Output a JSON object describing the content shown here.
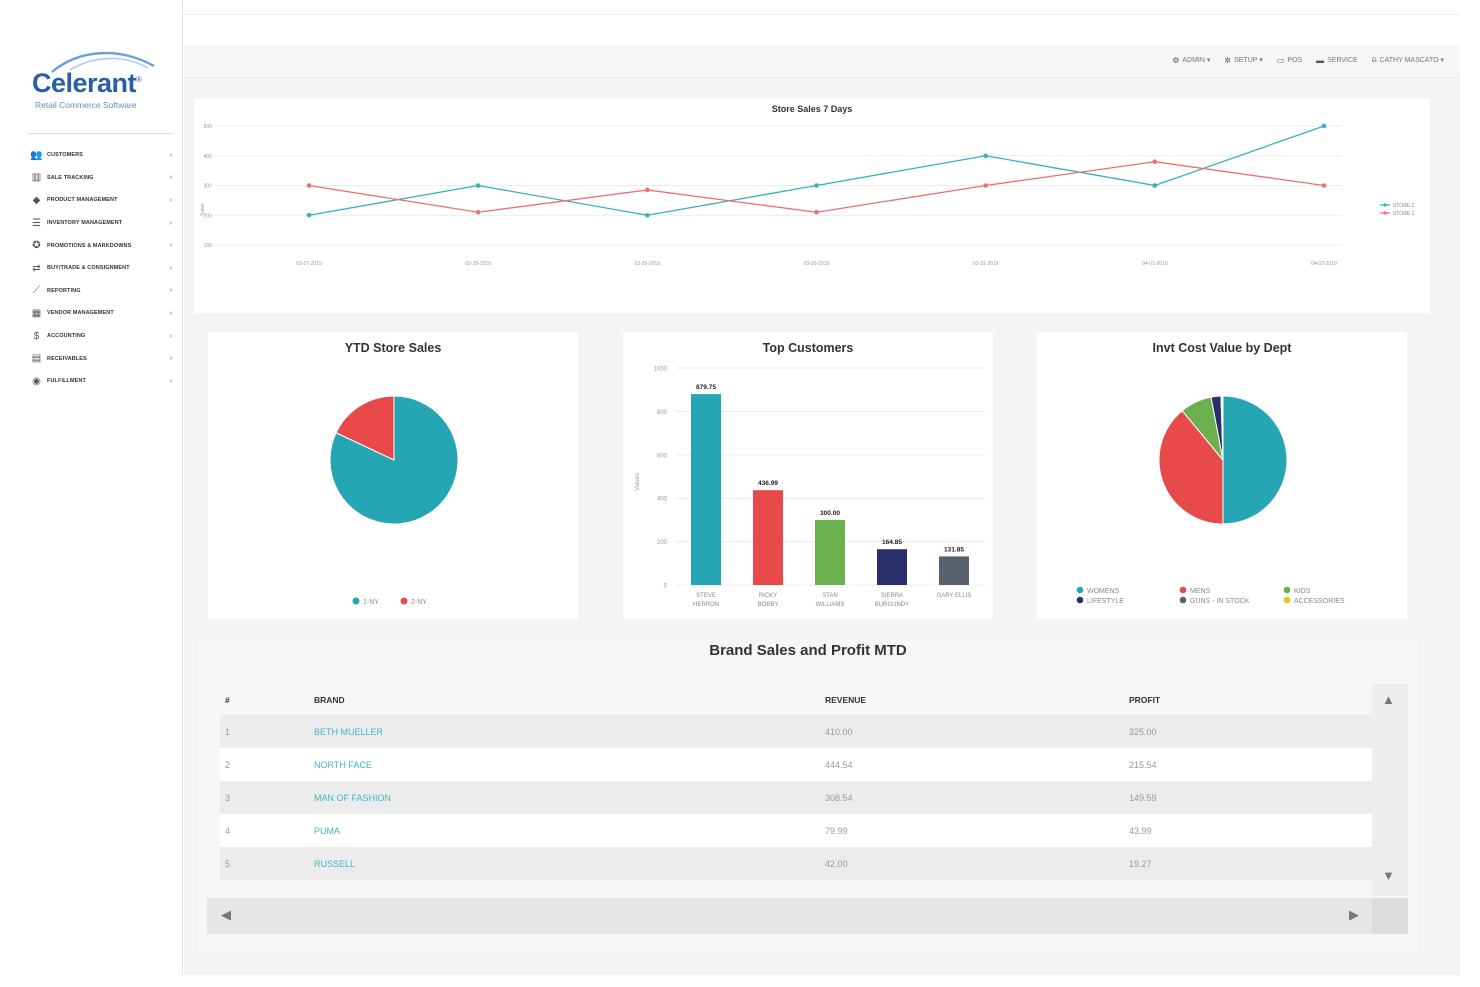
{
  "brand": {
    "name": "Celerant",
    "tagline": "Retail Commerce Software"
  },
  "sidebar": {
    "items": [
      {
        "label": "CUSTOMERS",
        "icon": "users-icon"
      },
      {
        "label": "SALE TRACKING",
        "icon": "chart-bars-icon"
      },
      {
        "label": "PRODUCT MANAGEMENT",
        "icon": "tag-icon"
      },
      {
        "label": "INVENTORY MANAGEMENT",
        "icon": "list-icon"
      },
      {
        "label": "PROMOTIONS & MARKDOWNS",
        "icon": "badge-icon"
      },
      {
        "label": "BUY/TRADE & CONSIGNMENT",
        "icon": "exchange-icon"
      },
      {
        "label": "REPORTING",
        "icon": "line-chart-icon"
      },
      {
        "label": "VENDOR MANAGEMENT",
        "icon": "building-icon"
      },
      {
        "label": "ACCOUNTING",
        "icon": "dollar-icon"
      },
      {
        "label": "RECEIVABLES",
        "icon": "invoice-icon"
      },
      {
        "label": "FULFILLMENT",
        "icon": "globe-icon"
      }
    ]
  },
  "header": {
    "menu": [
      {
        "label": "ADMIN ▾",
        "icon": "admin-icon"
      },
      {
        "label": "SETUP ▾",
        "icon": "gear-icon"
      },
      {
        "label": "POS",
        "icon": "register-icon"
      },
      {
        "label": "SERVICE",
        "icon": "service-icon"
      },
      {
        "label": "CATHY MASCATO ▾",
        "icon": "user-icon"
      }
    ]
  },
  "charts": {
    "line": {
      "title": "Store Sales 7 Days"
    },
    "ytd": {
      "title": "YTD Store Sales"
    },
    "top": {
      "title": "Top Customers"
    },
    "invt": {
      "title": "Invt Cost Value by Dept"
    }
  },
  "chart_data": [
    {
      "type": "line",
      "title": "Store Sales 7 Days",
      "ylabel": "Sales",
      "x": [
        "03-27-2019",
        "03-28-2019",
        "03-29-2019",
        "03-30-2019",
        "03-31-2019",
        "04-01-2019",
        "04-02-2019"
      ],
      "ylim": [
        100,
        500
      ],
      "yticks": [
        100,
        200,
        300,
        400,
        500
      ],
      "grid": true,
      "legend": "right",
      "series": [
        {
          "name": "STORE 2",
          "color": "#35b1bf",
          "values": [
            200,
            300,
            200,
            300,
            400,
            300,
            500
          ]
        },
        {
          "name": "STORE 1",
          "color": "#ef6f6f",
          "values": [
            300,
            210,
            285,
            210,
            300,
            380,
            300
          ]
        }
      ]
    },
    {
      "type": "pie",
      "title": "YTD Store Sales",
      "legend": "bottom",
      "labels": [
        "1-NY",
        "2-NY"
      ],
      "values": [
        82,
        18
      ],
      "colors": [
        "#26a6b3",
        "#e84a4a"
      ]
    },
    {
      "type": "bar",
      "title": "Top Customers",
      "ylabel": "Values",
      "ylim": [
        0,
        1000
      ],
      "yticks": [
        0,
        200,
        400,
        600,
        800,
        1000
      ],
      "categories": [
        "STEVE HERRON",
        "RICKY BOBBY",
        "STAN WILLIAMS",
        "SIERRA BURGUNDY",
        "GARY ELLIS"
      ],
      "values": [
        879.75,
        436.99,
        300.0,
        164.85,
        131.85
      ],
      "labels": [
        "879.75",
        "436.99",
        "300.00",
        "164.85",
        "131.85"
      ],
      "colors": [
        "#26a6b3",
        "#e84a4a",
        "#6ab04c",
        "#2a2f6b",
        "#58626e"
      ]
    },
    {
      "type": "pie",
      "title": "Invt Cost Value by Dept",
      "legend": "bottom",
      "labels": [
        "WOMENS",
        "MENS",
        "KIDS",
        "LIFESTYLE",
        "GUNS - IN STOCK",
        "ACCESSORIES"
      ],
      "values": [
        50,
        39,
        8,
        2.5,
        0.3,
        0.2
      ],
      "colors": [
        "#26a6b3",
        "#e84a4a",
        "#6ab04c",
        "#2a2f6b",
        "#58626e",
        "#f3c21b"
      ]
    }
  ],
  "table": {
    "title": "Brand Sales and Profit MTD",
    "headers": [
      "#",
      "BRAND",
      "REVENUE",
      "PROFIT"
    ],
    "rows": [
      [
        "1",
        "BETH MUELLER",
        "410.00",
        "325.00"
      ],
      [
        "2",
        "NORTH FACE",
        "444.54",
        "215.54"
      ],
      [
        "3",
        "MAN OF FASHION",
        "308.54",
        "149.59"
      ],
      [
        "4",
        "PUMA",
        "79.99",
        "43.99"
      ],
      [
        "5",
        "RUSSELL",
        "42.00",
        "19.27"
      ]
    ]
  }
}
